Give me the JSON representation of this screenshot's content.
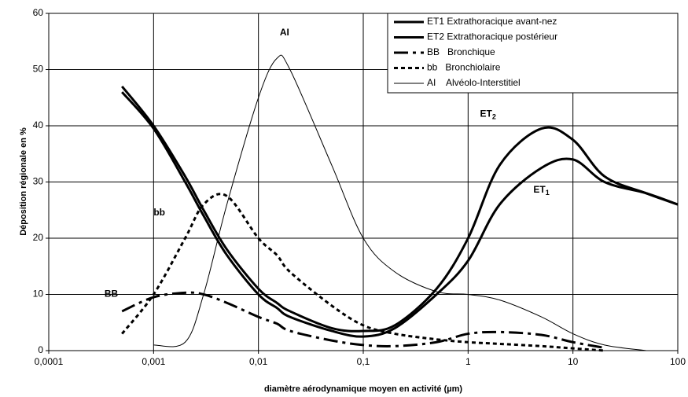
{
  "chart_data": {
    "type": "line",
    "xlabel": "diamètre aérodynamique moyen en activité (µm)",
    "ylabel": "Déposition régionale en %",
    "log_x": true,
    "grid": true,
    "legend": "upper right",
    "x": [
      0.0005,
      0.001,
      0.002,
      0.003,
      0.005,
      0.01,
      0.015,
      0.02,
      0.05,
      0.1,
      0.2,
      0.5,
      1,
      2,
      5,
      10,
      20,
      50,
      100
    ],
    "series": [
      {
        "name": "ET1 Extrathoracique avant-nez",
        "color": "#000000",
        "width": 3,
        "dash": "none",
        "values": [
          46,
          39.5,
          30,
          24,
          17,
          10,
          7.6,
          6,
          3.5,
          2.5,
          4,
          10,
          16,
          26,
          32.5,
          34,
          30,
          28,
          26
        ]
      },
      {
        "name": "ET2 Extrathoracique postérieur",
        "color": "#000000",
        "width": 3,
        "dash": "none",
        "values": [
          47,
          40,
          31,
          25,
          18,
          11,
          8.5,
          7,
          4,
          3.5,
          4.5,
          11,
          20,
          33,
          39.5,
          37.5,
          31,
          28,
          26
        ]
      },
      {
        "name": "BB   Bronchique",
        "color": "#000000",
        "width": 3,
        "dash": "18 6 4 6",
        "values": [
          7,
          9.5,
          10.3,
          10,
          8.5,
          6,
          4.8,
          3.5,
          1.8,
          1,
          0.8,
          1.5,
          3,
          3.3,
          2.8,
          1.5,
          0.5,
          null,
          null
        ]
      },
      {
        "name": "bb   Bronchiolaire",
        "color": "#000000",
        "width": 3,
        "dash": "5 4",
        "values": [
          3,
          10,
          20,
          26,
          27.5,
          20,
          17,
          14,
          8,
          4.5,
          3,
          2,
          1.5,
          1.2,
          0.8,
          0.4,
          0,
          null,
          null
        ]
      },
      {
        "name": "AI    Alvéolo-Interstitiel",
        "color": "#000000",
        "width": 1,
        "dash": "none",
        "values": [
          null,
          1,
          1.5,
          10,
          26,
          45,
          52,
          50,
          33,
          20,
          14,
          10.5,
          10,
          9,
          6,
          3,
          1,
          0,
          null
        ]
      }
    ],
    "annotations": [
      {
        "text": "AI",
        "x": 0.016,
        "y": 56.5
      },
      {
        "text": "ET",
        "sub": "2",
        "x": 1.3,
        "y": 42
      },
      {
        "text": "ET",
        "sub": "1",
        "x": 4.2,
        "y": 28.5
      },
      {
        "text": "bb",
        "x": 0.001,
        "y": 24.5
      },
      {
        "text": "BB",
        "x": 0.00034,
        "y": 10
      }
    ],
    "xlim": [
      0.0001,
      100
    ],
    "xticks": [
      {
        "value": 0.0001,
        "label": "0,0001"
      },
      {
        "value": 0.001,
        "label": "0,001"
      },
      {
        "value": 0.01,
        "label": "0,01"
      },
      {
        "value": 0.1,
        "label": "0,1"
      },
      1,
      10,
      100
    ],
    "ylim": [
      0,
      60
    ],
    "yticks": [
      0,
      10,
      20,
      30,
      40,
      50,
      60
    ]
  }
}
